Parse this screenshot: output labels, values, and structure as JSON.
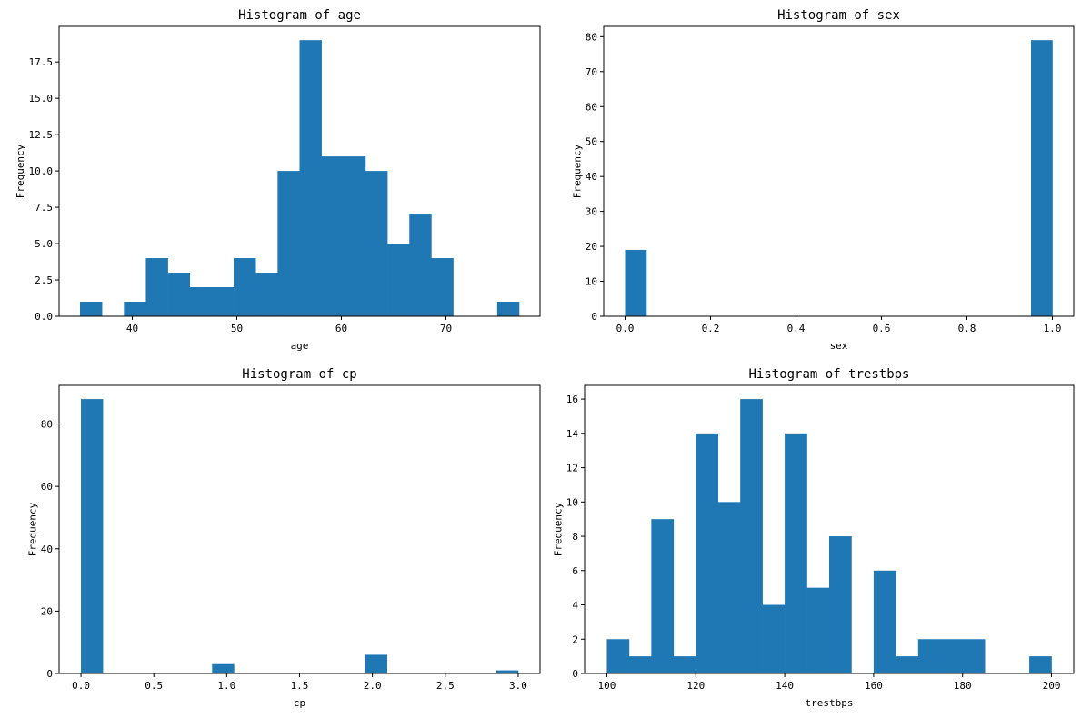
{
  "chart_data": [
    {
      "type": "bar",
      "title": "Histogram of age",
      "xlabel": "age",
      "ylabel": "Frequency",
      "xlim": [
        33.0,
        79.0
      ],
      "ylim": [
        0,
        19.95
      ],
      "xticks": [
        40,
        50,
        60,
        70
      ],
      "xtick_labels": [
        "40",
        "50",
        "60",
        "70"
      ],
      "yticks": [
        0,
        2.5,
        5,
        7.5,
        10,
        12.5,
        15,
        17.5
      ],
      "ytick_labels": [
        "0.0",
        "2.5",
        "5.0",
        "7.5",
        "10.0",
        "12.5",
        "15.0",
        "17.5"
      ],
      "bin_edges": [
        35.0,
        37.1,
        39.2,
        41.3,
        43.4,
        45.5,
        47.6,
        49.7,
        51.8,
        53.9,
        56.0,
        58.1,
        60.2,
        62.3,
        64.4,
        66.5,
        68.6,
        70.7,
        72.8,
        74.9,
        77.0
      ],
      "values": [
        1,
        0,
        1,
        4,
        3,
        2,
        2,
        4,
        3,
        10,
        19,
        11,
        11,
        10,
        5,
        7,
        4,
        0,
        0,
        1
      ],
      "color": "#1f77b4"
    },
    {
      "type": "bar",
      "title": "Histogram of sex",
      "xlabel": "sex",
      "ylabel": "Frequency",
      "xlim": [
        -0.05,
        1.05
      ],
      "ylim": [
        0,
        82.95
      ],
      "xticks": [
        0,
        0.2,
        0.4,
        0.6,
        0.8,
        1.0
      ],
      "xtick_labels": [
        "0.0",
        "0.2",
        "0.4",
        "0.6",
        "0.8",
        "1.0"
      ],
      "yticks": [
        0,
        10,
        20,
        30,
        40,
        50,
        60,
        70,
        80
      ],
      "ytick_labels": [
        "0",
        "10",
        "20",
        "30",
        "40",
        "50",
        "60",
        "70",
        "80"
      ],
      "bin_edges": [
        0.0,
        0.05,
        0.1,
        0.15,
        0.2,
        0.25,
        0.3,
        0.35,
        0.4,
        0.45,
        0.5,
        0.55,
        0.6,
        0.65,
        0.7,
        0.75,
        0.8,
        0.85,
        0.9,
        0.95,
        1.0
      ],
      "values": [
        19,
        0,
        0,
        0,
        0,
        0,
        0,
        0,
        0,
        0,
        0,
        0,
        0,
        0,
        0,
        0,
        0,
        0,
        0,
        79
      ],
      "color": "#1f77b4"
    },
    {
      "type": "bar",
      "title": "Histogram of cp",
      "xlabel": "cp",
      "ylabel": "Frequency",
      "xlim": [
        -0.15,
        3.15
      ],
      "ylim": [
        0,
        92.4
      ],
      "xticks": [
        0,
        0.5,
        1.0,
        1.5,
        2.0,
        2.5,
        3.0
      ],
      "xtick_labels": [
        "0.0",
        "0.5",
        "1.0",
        "1.5",
        "2.0",
        "2.5",
        "3.0"
      ],
      "yticks": [
        0,
        20,
        40,
        60,
        80
      ],
      "ytick_labels": [
        "0",
        "20",
        "40",
        "60",
        "80"
      ],
      "bin_edges": [
        0.0,
        0.15,
        0.3,
        0.45,
        0.6,
        0.75,
        0.9,
        1.05,
        1.2,
        1.35,
        1.5,
        1.65,
        1.8,
        1.95,
        2.1,
        2.25,
        2.4,
        2.55,
        2.7,
        2.85,
        3.0
      ],
      "values": [
        88,
        0,
        0,
        0,
        0,
        0,
        3,
        0,
        0,
        0,
        0,
        0,
        0,
        6,
        0,
        0,
        0,
        0,
        0,
        1
      ],
      "color": "#1f77b4"
    },
    {
      "type": "bar",
      "title": "Histogram of trestbps",
      "xlabel": "trestbps",
      "ylabel": "Frequency",
      "xlim": [
        95.0,
        205.0
      ],
      "ylim": [
        0,
        16.8
      ],
      "xticks": [
        100,
        120,
        140,
        160,
        180,
        200
      ],
      "xtick_labels": [
        "100",
        "120",
        "140",
        "160",
        "180",
        "200"
      ],
      "yticks": [
        0,
        2,
        4,
        6,
        8,
        10,
        12,
        14,
        16
      ],
      "ytick_labels": [
        "0",
        "2",
        "4",
        "6",
        "8",
        "10",
        "12",
        "14",
        "16"
      ],
      "bin_edges": [
        100,
        105,
        110,
        115,
        120,
        125,
        130,
        135,
        140,
        145,
        150,
        155,
        160,
        165,
        170,
        175,
        180,
        185,
        190,
        195,
        200
      ],
      "values": [
        2,
        1,
        9,
        1,
        14,
        10,
        16,
        4,
        14,
        5,
        8,
        0,
        6,
        1,
        2,
        2,
        2,
        0,
        0,
        1
      ],
      "color": "#1f77b4"
    }
  ]
}
